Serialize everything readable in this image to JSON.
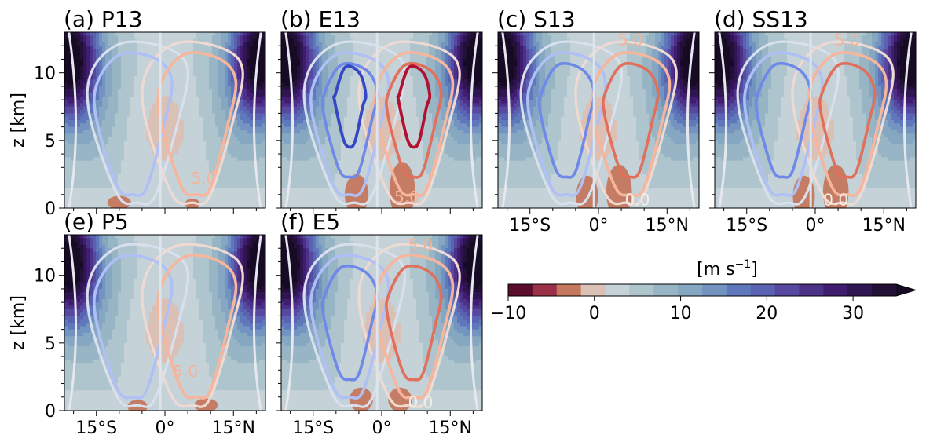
{
  "chart_data": {
    "type": "contour",
    "colorbar": {
      "label_main": "[m s",
      "label_sup": "−1",
      "label_tail": "]",
      "min": -10,
      "max": 35,
      "step": 2.5,
      "extend": "max",
      "tick_values": [
        -10,
        0,
        10,
        20,
        30
      ],
      "tick_labels": [
        "−10",
        "0",
        "10",
        "20",
        "30"
      ],
      "colors": [
        "#5c0d2b",
        "#9b3148",
        "#c4785e",
        "#dbc0b5",
        "#c5d2d8",
        "#aec5ce",
        "#97b5c4",
        "#86a7c2",
        "#7393c1",
        "#5f78bb",
        "#5a63b2",
        "#56499f",
        "#4c3189",
        "#401d70",
        "#2f1551",
        "#221036",
        "#170a25"
      ]
    },
    "zlabel": "z [km]",
    "z_ticks": [
      0,
      5,
      10
    ],
    "z_range": [
      0,
      13
    ],
    "lat_range": [
      -22,
      22
    ],
    "lat_ticks": [
      -15,
      0,
      15
    ],
    "lat_tick_labels": [
      "15°S",
      "0°",
      "15°N"
    ],
    "contour_label_texts": [
      "5.0",
      "0.0"
    ],
    "panels": [
      {
        "label": "(a) P13",
        "inner_levels": 2,
        "show_xticks": false,
        "lower_jets": [
          [
            -10,
            0.4,
            2.6,
            0.5
          ],
          [
            6,
            0.3,
            1.6,
            0.4
          ]
        ],
        "contour_labels": [
          [
            "5.0",
            8.5,
            1.8
          ]
        ]
      },
      {
        "label": "(b) E13",
        "inner_levels": 4,
        "show_xticks": false,
        "lower_jets": [
          [
            -5.5,
            1.0,
            2.6,
            1.5
          ],
          [
            4.5,
            1.3,
            2.8,
            2.1
          ]
        ],
        "contour_labels": [
          [
            "5.0",
            5.5,
            0.4
          ]
        ]
      },
      {
        "label": "(c) S13",
        "inner_levels": 3,
        "show_xticks": true,
        "lower_jets": [
          [
            -2.5,
            0.9,
            2.4,
            1.5
          ],
          [
            4.5,
            1.2,
            2.8,
            2.0
          ]
        ],
        "contour_labels": [
          [
            "5.0",
            7.0,
            12.0
          ],
          [
            "0.0",
            8.5,
            0.2
          ]
        ]
      },
      {
        "label": "(d) SS13",
        "inner_levels": 3,
        "show_xticks": true,
        "lower_jets": [
          [
            -2.5,
            0.9,
            2.4,
            1.5
          ],
          [
            4.5,
            1.2,
            2.8,
            2.0
          ]
        ],
        "contour_labels": [
          [
            "5.0",
            7.0,
            12.0
          ],
          [
            "0.0",
            4.5,
            0.2
          ]
        ]
      },
      {
        "label": "(e) P5",
        "inner_levels": 2,
        "show_xticks": true,
        "lower_jets": [
          [
            -6,
            0.3,
            2.2,
            0.5
          ],
          [
            9,
            0.4,
            2.6,
            0.5
          ]
        ],
        "contour_labels": [
          [
            "5.0",
            4.5,
            2.5
          ]
        ]
      },
      {
        "label": "(f) E5",
        "inner_levels": 3,
        "show_xticks": true,
        "lower_jets": [
          [
            -4.5,
            0.8,
            2.6,
            0.9
          ],
          [
            4,
            0.8,
            2.6,
            0.9
          ]
        ],
        "contour_labels": [
          [
            "5.0",
            8.5,
            11.8
          ],
          [
            "0.0",
            8.5,
            0.2
          ]
        ]
      }
    ]
  }
}
